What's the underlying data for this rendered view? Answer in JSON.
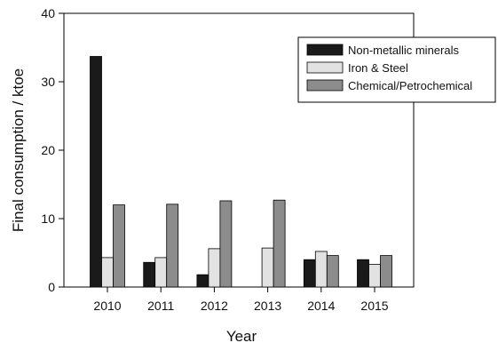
{
  "chart_data": {
    "type": "bar",
    "xlabel": "Year",
    "ylabel": "Final consumption / ktoe",
    "ylim": [
      0,
      40
    ],
    "yticks": [
      0,
      10,
      20,
      30,
      40
    ],
    "grid": false,
    "legend_position": "top-right",
    "categories": [
      "2010",
      "2011",
      "2012",
      "2013",
      "2014",
      "2015"
    ],
    "series": [
      {
        "name": "Non-metallic minerals",
        "color": "#1a1a1a",
        "values": [
          33.7,
          3.6,
          1.8,
          0,
          4.0,
          4.0
        ]
      },
      {
        "name": "Iron & Steel",
        "color": "#e2e2e2",
        "values": [
          4.3,
          4.3,
          5.6,
          5.7,
          5.2,
          3.3
        ]
      },
      {
        "name": "Chemical/Petrochemical",
        "color": "#8c8c8c",
        "values": [
          12.0,
          12.1,
          12.6,
          12.7,
          4.6,
          4.6
        ]
      }
    ]
  }
}
